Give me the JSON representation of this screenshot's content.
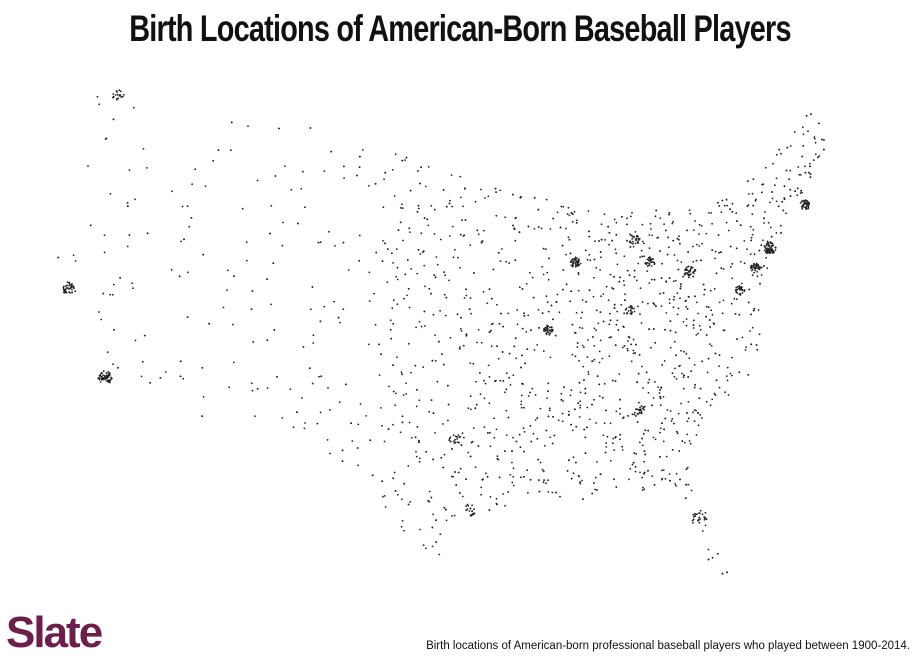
{
  "header": {
    "title": "Birth Locations of American-Born Baseball Players"
  },
  "footer": {
    "logo": "Slate",
    "caption": "Birth locations of American-born professional baseball players who played between 1900-2014."
  }
}
